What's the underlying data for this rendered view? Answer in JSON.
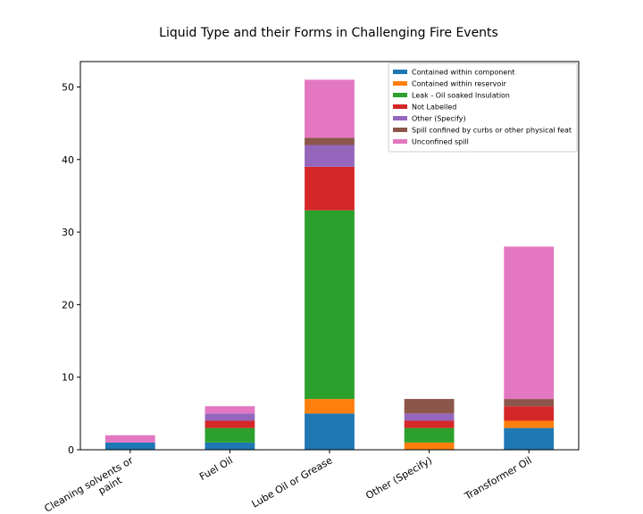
{
  "chart_data": {
    "type": "bar",
    "stacked": true,
    "title": "Liquid Type and their Forms in Challenging Fire Events",
    "xlabel": "",
    "ylabel": "",
    "categories": [
      "Cleaning solvents or paint",
      "Fuel Oil",
      "Lube Oil or Grease",
      "Other (Specify)",
      "Transformer Oil"
    ],
    "ylim": [
      0,
      53.5
    ],
    "yticks": [
      0,
      10,
      20,
      30,
      40,
      50
    ],
    "legend_position": "top-right",
    "grid": false,
    "series": [
      {
        "name": "Contained within component",
        "color": "#1f77b4",
        "values": [
          1,
          1,
          5,
          0,
          3
        ]
      },
      {
        "name": "Contained within reservoir",
        "color": "#ff7f0e",
        "values": [
          0,
          0,
          2,
          1,
          1
        ]
      },
      {
        "name": "Leak - Oil soaked Insulation",
        "color": "#2ca02c",
        "values": [
          0,
          2,
          26,
          2,
          0
        ]
      },
      {
        "name": "Not Labelled",
        "color": "#d62728",
        "values": [
          0,
          1,
          6,
          1,
          2
        ]
      },
      {
        "name": "Other (Specify)",
        "color": "#9467bd",
        "values": [
          0,
          1,
          3,
          1,
          0
        ]
      },
      {
        "name": "Spill confined by curbs or other physical feat",
        "color": "#8c564b",
        "values": [
          0,
          0,
          1,
          2,
          1
        ]
      },
      {
        "name": "Unconfined spill",
        "color": "#e377c2",
        "values": [
          1,
          1,
          8,
          0,
          21
        ]
      }
    ]
  }
}
